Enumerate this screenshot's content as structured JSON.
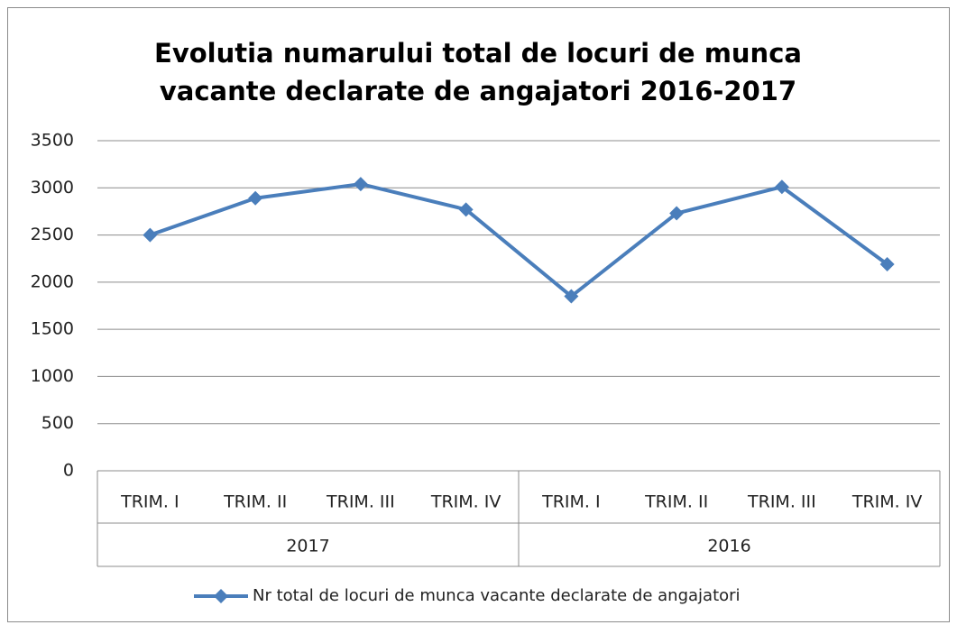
{
  "chart_data": {
    "type": "line",
    "title": "Evolutia numarului total de locuri de munca vacante declarate de angajatori 2016-2017",
    "groups": [
      {
        "label": "2017",
        "categories": [
          "TRIM. I",
          "TRIM. II",
          "TRIM. III",
          "TRIM. IV"
        ]
      },
      {
        "label": "2016",
        "categories": [
          "TRIM. I",
          "TRIM. II",
          "TRIM. III",
          "TRIM. IV"
        ]
      }
    ],
    "series": [
      {
        "name": "Nr total de locuri de munca vacante declarate de angajatori",
        "color": "#4a7ebb",
        "values": [
          2500,
          2890,
          3040,
          2770,
          1850,
          2730,
          3010,
          2190
        ]
      }
    ],
    "ylim": [
      0,
      3500
    ],
    "yticks": [
      0,
      500,
      1000,
      1500,
      2000,
      2500,
      3000,
      3500
    ],
    "grid": true,
    "legend": "bottom"
  }
}
